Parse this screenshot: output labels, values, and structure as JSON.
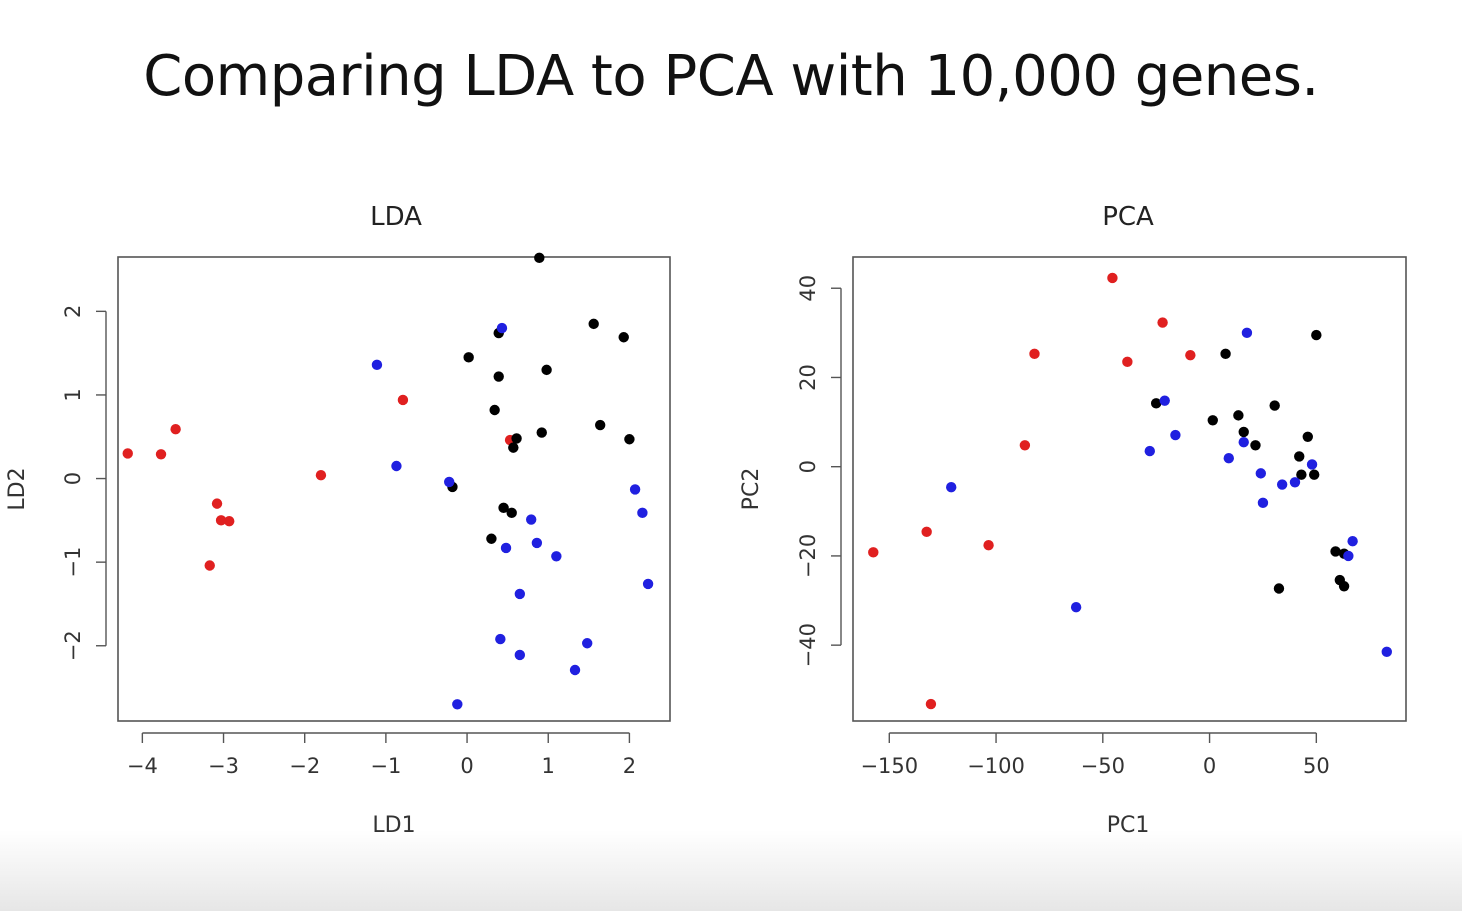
{
  "slide": {
    "title": "Comparing LDA to PCA with 10,000 genes."
  },
  "chart_data": [
    {
      "type": "scatter",
      "title": "LDA",
      "xlabel": "LD1",
      "ylabel": "LD2",
      "xlim": [
        -4.3,
        2.5
      ],
      "ylim": [
        -2.9,
        2.65
      ],
      "xticks": [
        -4,
        -3,
        -2,
        -1,
        0,
        1,
        2
      ],
      "xtick_labels": [
        "−4",
        "−3",
        "−2",
        "−1",
        "0",
        "1",
        "2"
      ],
      "yticks": [
        -2,
        -1,
        0,
        1,
        2
      ],
      "ytick_labels": [
        "−2",
        "−1",
        "0",
        "1",
        "2"
      ],
      "grid": false,
      "legend": "none",
      "series": [
        {
          "color": "#e02020",
          "points": [
            [
              -4.18,
              0.3
            ],
            [
              -3.77,
              0.29
            ],
            [
              -3.59,
              0.59
            ],
            [
              -3.08,
              -0.3
            ],
            [
              -3.03,
              -0.5
            ],
            [
              -2.93,
              -0.51
            ],
            [
              -3.17,
              -1.04
            ],
            [
              -1.8,
              0.04
            ],
            [
              -0.79,
              0.94
            ],
            [
              0.53,
              0.46
            ]
          ]
        },
        {
          "color": "#000000",
          "points": [
            [
              0.89,
              2.64
            ],
            [
              1.56,
              1.85
            ],
            [
              1.93,
              1.69
            ],
            [
              0.39,
              1.74
            ],
            [
              0.02,
              1.45
            ],
            [
              0.98,
              1.3
            ],
            [
              0.39,
              1.22
            ],
            [
              0.34,
              0.82
            ],
            [
              1.64,
              0.64
            ],
            [
              0.92,
              0.55
            ],
            [
              2.0,
              0.47
            ],
            [
              0.61,
              0.48
            ],
            [
              0.57,
              0.37
            ],
            [
              -0.18,
              -0.1
            ],
            [
              0.45,
              -0.35
            ],
            [
              0.55,
              -0.41
            ],
            [
              0.3,
              -0.72
            ]
          ]
        },
        {
          "color": "#2020e0",
          "points": [
            [
              0.43,
              1.8
            ],
            [
              -1.11,
              1.36
            ],
            [
              -0.87,
              0.15
            ],
            [
              -0.22,
              -0.04
            ],
            [
              2.07,
              -0.13
            ],
            [
              2.16,
              -0.41
            ],
            [
              0.79,
              -0.49
            ],
            [
              0.48,
              -0.83
            ],
            [
              0.86,
              -0.77
            ],
            [
              1.1,
              -0.93
            ],
            [
              2.23,
              -1.26
            ],
            [
              0.65,
              -1.38
            ],
            [
              0.41,
              -1.92
            ],
            [
              1.48,
              -1.97
            ],
            [
              0.65,
              -2.11
            ],
            [
              1.33,
              -2.29
            ],
            [
              -0.12,
              -2.7
            ]
          ]
        }
      ]
    },
    {
      "type": "scatter",
      "title": "PCA",
      "xlabel": "PC1",
      "ylabel": "PC2",
      "xlim": [
        -167,
        92
      ],
      "ylim": [
        -57,
        47
      ],
      "xticks": [
        -150,
        -100,
        -50,
        0,
        50
      ],
      "xtick_labels": [
        "−150",
        "−100",
        "−50",
        "0",
        "50"
      ],
      "yticks": [
        -40,
        -20,
        0,
        20,
        40
      ],
      "ytick_labels": [
        "−40",
        "−20",
        "0",
        "20",
        "40"
      ],
      "grid": false,
      "legend": "none",
      "series": [
        {
          "color": "#e02020",
          "points": [
            [
              -45.5,
              42.3
            ],
            [
              -22,
              32.3
            ],
            [
              -82,
              25.3
            ],
            [
              -38.5,
              23.5
            ],
            [
              -9,
              25
            ],
            [
              -86.5,
              4.8
            ],
            [
              -157.5,
              -19.2
            ],
            [
              -132.5,
              -14.6
            ],
            [
              -103.5,
              -17.6
            ],
            [
              -130.5,
              -53.2
            ]
          ]
        },
        {
          "color": "#000000",
          "points": [
            [
              50,
              29.5
            ],
            [
              7.5,
              25.3
            ],
            [
              -25,
              14.2
            ],
            [
              30.5,
              13.7
            ],
            [
              1.5,
              10.4
            ],
            [
              13.5,
              11.5
            ],
            [
              16,
              7.8
            ],
            [
              21.5,
              4.8
            ],
            [
              46,
              6.7
            ],
            [
              42,
              2.3
            ],
            [
              43,
              -1.8
            ],
            [
              49,
              -1.8
            ],
            [
              59,
              -19
            ],
            [
              63,
              -19.5
            ],
            [
              61,
              -25.4
            ],
            [
              63,
              -26.8
            ],
            [
              32.5,
              -27.3
            ]
          ]
        },
        {
          "color": "#2020e0",
          "points": [
            [
              17.5,
              30
            ],
            [
              -21,
              14.8
            ],
            [
              -16,
              7.1
            ],
            [
              -28,
              3.5
            ],
            [
              16,
              5.5
            ],
            [
              9,
              1.9
            ],
            [
              24,
              -1.5
            ],
            [
              48,
              0.5
            ],
            [
              40,
              -3.5
            ],
            [
              34,
              -4
            ],
            [
              25,
              -8.1
            ],
            [
              -121,
              -4.6
            ],
            [
              65,
              -20
            ],
            [
              67,
              -16.7
            ],
            [
              -62.5,
              -31.5
            ],
            [
              83,
              -41.5
            ]
          ]
        }
      ]
    }
  ]
}
